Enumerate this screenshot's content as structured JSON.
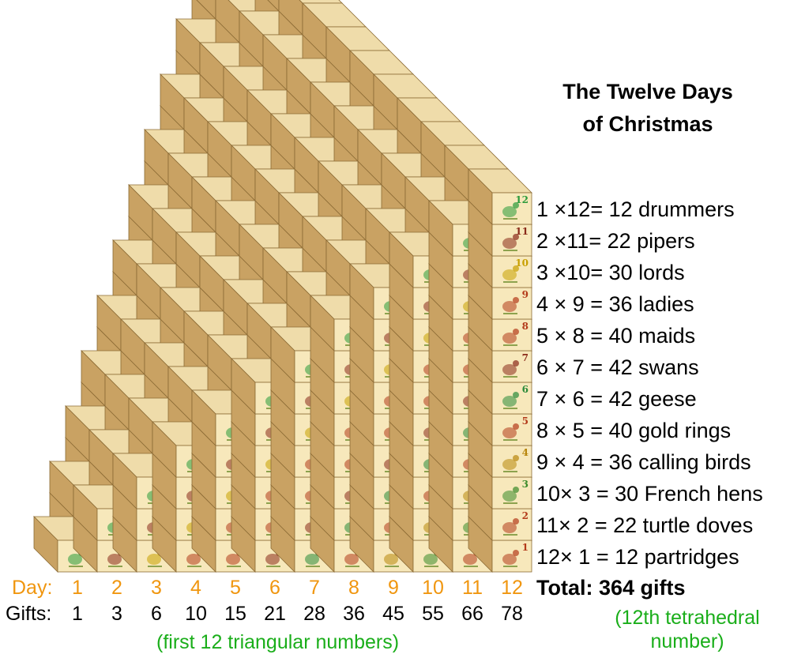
{
  "title_line1": "The Twelve Days",
  "title_line2": "of Christmas",
  "day_label": "Day:",
  "gifts_label": "Gifts:",
  "days": [
    "1",
    "2",
    "3",
    "4",
    "5",
    "6",
    "7",
    "8",
    "9",
    "10",
    "11",
    "12"
  ],
  "cumulative_gifts": [
    "1",
    "3",
    "6",
    "10",
    "15",
    "21",
    "28",
    "36",
    "45",
    "55",
    "66",
    "78"
  ],
  "gift_lines": [
    "1 ×12= 12 drummers",
    "2 ×11= 22 pipers",
    "3 ×10= 30 lords",
    "4 × 9 = 36 ladies",
    "5 × 8 = 40 maids",
    "6 × 7 = 42 swans",
    "7 × 6 = 42 geese",
    "8 × 5 = 40 gold rings",
    "9 × 4 = 36 calling birds",
    "10× 3 = 30 French hens",
    "11× 2 = 22 turtle doves",
    "12× 1 = 12 partridges"
  ],
  "total": "Total: 364 gifts",
  "note_triangular": "(first 12 triangular numbers)",
  "note_tetrahedral_line1": "(12th tetrahedral",
  "note_tetrahedral_line2": "number)",
  "block_numbers": [
    "1",
    "2",
    "3",
    "4",
    "5",
    "6",
    "7",
    "8",
    "9",
    "10",
    "11",
    "12"
  ],
  "colors": {
    "day_orange": "#f0960f",
    "note_green": "#1aae1a",
    "block_front": "#f7e8bb",
    "block_side": "#c9a263",
    "block_top": "#efdcaa",
    "block_edge": "#8c6b35",
    "number_colors": [
      "#b33a1a",
      "#b33a1a",
      "#3a8a2a",
      "#b8860b",
      "#b33a1a",
      "#2a8a3a",
      "#8a2a1a",
      "#b33a1a",
      "#b33a1a",
      "#c8a000",
      "#8a2a1a",
      "#2a9a3a"
    ]
  },
  "block_icons": [
    "partridge-icon",
    "turtle-dove-icon",
    "french-hen-icon",
    "calling-bird-icon",
    "gold-ring-icon",
    "goose-icon",
    "swan-icon",
    "maid-icon",
    "lady-icon",
    "lord-icon",
    "piper-icon",
    "drummer-icon"
  ]
}
